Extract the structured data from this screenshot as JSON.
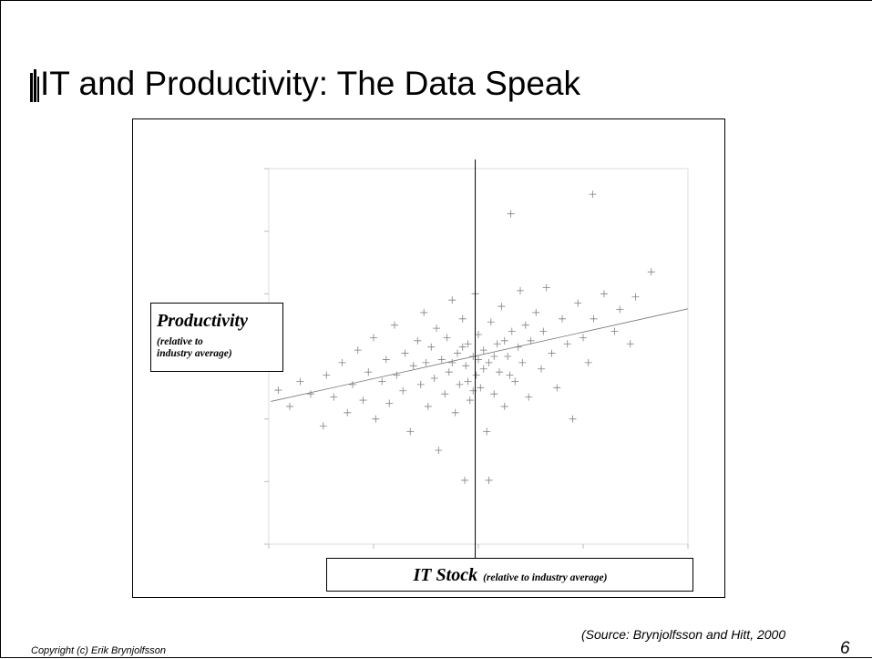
{
  "title": "IT and Productivity: The Data Speak",
  "footer": {
    "copyright": "Copyright (c) Erik Brynjolfsson",
    "page_number": "6",
    "source": "(Source: Brynjolfsson and Hitt, 2000"
  },
  "chart_data": {
    "type": "scatter",
    "y_label": "Productivity",
    "y_label_note": [
      "(relative to",
      "industry average)"
    ],
    "x_label": "IT Stock",
    "x_label_note": "(relative to industry average)",
    "xlim": [
      0,
      4
    ],
    "xticks": [
      0,
      1,
      2,
      3,
      4
    ],
    "ylim": [
      0,
      6
    ],
    "yticks": [
      0,
      1,
      2,
      3,
      4,
      5,
      6
    ],
    "grid": false,
    "color": "#555555",
    "reference_line_x": 1.97,
    "fit_line": {
      "x": [
        0.02,
        4
      ],
      "y": [
        2.28,
        3.76
      ]
    },
    "x": [
      0.09,
      0.2,
      0.3,
      0.4,
      0.52,
      0.55,
      0.62,
      0.7,
      0.75,
      0.8,
      0.85,
      0.9,
      0.95,
      1.0,
      1.02,
      1.08,
      1.12,
      1.15,
      1.2,
      1.22,
      1.28,
      1.3,
      1.35,
      1.38,
      1.42,
      1.45,
      1.48,
      1.5,
      1.52,
      1.55,
      1.58,
      1.6,
      1.62,
      1.65,
      1.68,
      1.7,
      1.72,
      1.75,
      1.78,
      1.8,
      1.82,
      1.85,
      1.87,
      1.88,
      1.9,
      1.92,
      1.95,
      1.97,
      1.98,
      2.0,
      2.02,
      2.05,
      2.08,
      2.1,
      2.1,
      2.12,
      2.15,
      2.18,
      2.2,
      2.22,
      2.25,
      2.28,
      2.31,
      2.32,
      2.35,
      2.38,
      2.4,
      2.42,
      2.45,
      2.48,
      2.5,
      2.55,
      2.6,
      2.62,
      2.65,
      2.7,
      2.75,
      2.8,
      2.85,
      2.9,
      2.95,
      3.0,
      3.05,
      3.09,
      3.1,
      3.2,
      3.3,
      3.35,
      3.45,
      3.5,
      3.65,
      1.9,
      2.05,
      1.75,
      2.15,
      1.95,
      2.25,
      1.85,
      2.0,
      2.3
    ],
    "values": [
      2.46,
      2.2,
      2.6,
      2.4,
      1.89,
      2.7,
      2.35,
      2.9,
      2.1,
      2.55,
      3.1,
      2.3,
      2.75,
      3.3,
      2.0,
      2.6,
      2.95,
      2.25,
      3.5,
      2.7,
      2.45,
      3.05,
      1.8,
      2.85,
      3.25,
      2.55,
      3.7,
      2.9,
      2.2,
      3.15,
      2.65,
      3.45,
      1.5,
      2.95,
      2.4,
      3.3,
      2.75,
      3.9,
      2.1,
      3.05,
      2.55,
      3.6,
      1.02,
      2.85,
      3.2,
      2.3,
      3.0,
      4.0,
      2.7,
      3.35,
      2.5,
      3.1,
      1.8,
      1.02,
      2.9,
      3.55,
      2.4,
      3.2,
      2.75,
      3.8,
      2.2,
      3.0,
      5.28,
      3.4,
      2.6,
      3.15,
      4.05,
      2.9,
      3.5,
      2.35,
      3.25,
      3.7,
      2.8,
      3.4,
      4.1,
      3.05,
      2.5,
      3.6,
      3.2,
      2.0,
      3.85,
      3.3,
      2.9,
      5.59,
      3.6,
      4.0,
      3.4,
      3.75,
      3.2,
      3.95,
      4.35,
      2.6,
      2.8,
      2.9,
      3.0,
      2.45,
      3.25,
      3.15,
      2.95,
      2.7
    ]
  }
}
